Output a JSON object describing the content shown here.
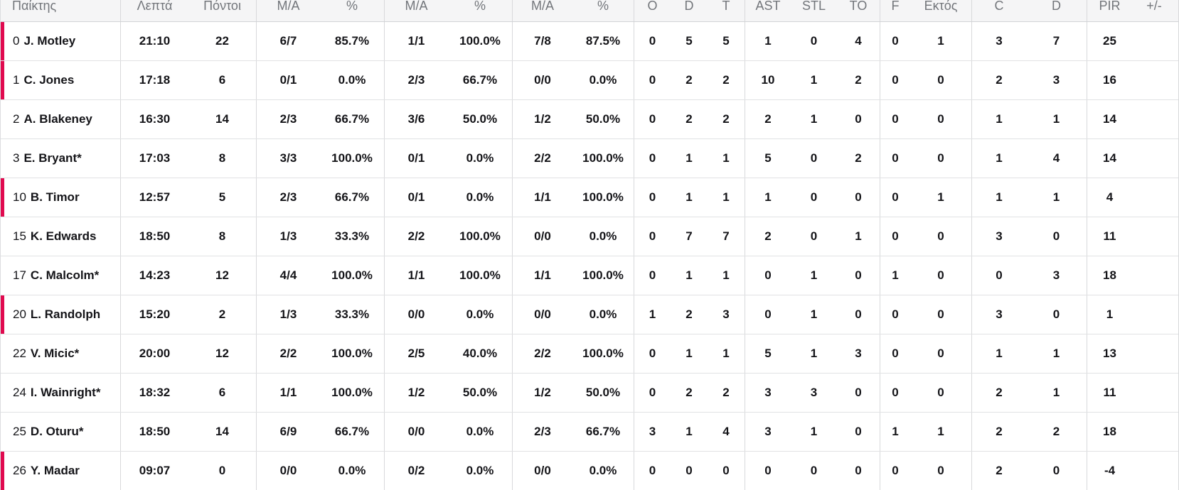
{
  "colors": {
    "on_court_accent": "#e00a4f",
    "header_background": "#f5f5f6",
    "header_text": "#73767b",
    "body_text": "#141418",
    "group_border": "#d8d9db",
    "row_border": "#e1e2e4"
  },
  "table": {
    "columns": [
      {
        "key": "player",
        "label": "Παίκτης"
      },
      {
        "key": "minutes",
        "label": "Λεπτά"
      },
      {
        "key": "points",
        "label": "Πόντοι"
      },
      {
        "key": "fg2_made_attempted",
        "label": "M/A"
      },
      {
        "key": "fg2_percent",
        "label": "%"
      },
      {
        "key": "fg3_made_attempted",
        "label": "M/A"
      },
      {
        "key": "fg3_percent",
        "label": "%"
      },
      {
        "key": "ft_made_attempted",
        "label": "M/A"
      },
      {
        "key": "ft_percent",
        "label": "%"
      },
      {
        "key": "rebounds_offensive",
        "label": "O"
      },
      {
        "key": "rebounds_defensive",
        "label": "D"
      },
      {
        "key": "rebounds_total",
        "label": "T"
      },
      {
        "key": "assists",
        "label": "AST"
      },
      {
        "key": "steals",
        "label": "STL"
      },
      {
        "key": "turnovers",
        "label": "TO"
      },
      {
        "key": "blocks_favour",
        "label": "F"
      },
      {
        "key": "blocks_against",
        "label": "Εκτός"
      },
      {
        "key": "fouls_committed",
        "label": "C"
      },
      {
        "key": "fouls_drawn",
        "label": "D"
      },
      {
        "key": "pir",
        "label": "PIR"
      },
      {
        "key": "plus_minus",
        "label": "+/-"
      }
    ],
    "rows": [
      {
        "on_court": true,
        "number": "0",
        "name": "J. Motley",
        "stats": [
          "21:10",
          "22",
          "6/7",
          "85.7%",
          "1/1",
          "100.0%",
          "7/8",
          "87.5%",
          "0",
          "5",
          "5",
          "1",
          "0",
          "4",
          "0",
          "1",
          "3",
          "7",
          "25",
          ""
        ]
      },
      {
        "on_court": true,
        "number": "1",
        "name": "C. Jones",
        "stats": [
          "17:18",
          "6",
          "0/1",
          "0.0%",
          "2/3",
          "66.7%",
          "0/0",
          "0.0%",
          "0",
          "2",
          "2",
          "10",
          "1",
          "2",
          "0",
          "0",
          "2",
          "3",
          "16",
          ""
        ]
      },
      {
        "on_court": false,
        "number": "2",
        "name": "A. Blakeney",
        "stats": [
          "16:30",
          "14",
          "2/3",
          "66.7%",
          "3/6",
          "50.0%",
          "1/2",
          "50.0%",
          "0",
          "2",
          "2",
          "2",
          "1",
          "0",
          "0",
          "0",
          "1",
          "1",
          "14",
          ""
        ]
      },
      {
        "on_court": false,
        "number": "3",
        "name": "E. Bryant*",
        "stats": [
          "17:03",
          "8",
          "3/3",
          "100.0%",
          "0/1",
          "0.0%",
          "2/2",
          "100.0%",
          "0",
          "1",
          "1",
          "5",
          "0",
          "2",
          "0",
          "0",
          "1",
          "4",
          "14",
          ""
        ]
      },
      {
        "on_court": true,
        "number": "10",
        "name": "B. Timor",
        "stats": [
          "12:57",
          "5",
          "2/3",
          "66.7%",
          "0/1",
          "0.0%",
          "1/1",
          "100.0%",
          "0",
          "1",
          "1",
          "1",
          "0",
          "0",
          "0",
          "1",
          "1",
          "1",
          "4",
          ""
        ]
      },
      {
        "on_court": false,
        "number": "15",
        "name": "K. Edwards",
        "stats": [
          "18:50",
          "8",
          "1/3",
          "33.3%",
          "2/2",
          "100.0%",
          "0/0",
          "0.0%",
          "0",
          "7",
          "7",
          "2",
          "0",
          "1",
          "0",
          "0",
          "3",
          "0",
          "11",
          ""
        ]
      },
      {
        "on_court": false,
        "number": "17",
        "name": "C. Malcolm*",
        "stats": [
          "14:23",
          "12",
          "4/4",
          "100.0%",
          "1/1",
          "100.0%",
          "1/1",
          "100.0%",
          "0",
          "1",
          "1",
          "0",
          "1",
          "0",
          "1",
          "0",
          "0",
          "3",
          "18",
          ""
        ]
      },
      {
        "on_court": true,
        "number": "20",
        "name": "L. Randolph",
        "stats": [
          "15:20",
          "2",
          "1/3",
          "33.3%",
          "0/0",
          "0.0%",
          "0/0",
          "0.0%",
          "1",
          "2",
          "3",
          "0",
          "1",
          "0",
          "0",
          "0",
          "3",
          "0",
          "1",
          ""
        ]
      },
      {
        "on_court": false,
        "number": "22",
        "name": "V. Micic*",
        "stats": [
          "20:00",
          "12",
          "2/2",
          "100.0%",
          "2/5",
          "40.0%",
          "2/2",
          "100.0%",
          "0",
          "1",
          "1",
          "5",
          "1",
          "3",
          "0",
          "0",
          "1",
          "1",
          "13",
          ""
        ]
      },
      {
        "on_court": false,
        "number": "24",
        "name": "I. Wainright*",
        "stats": [
          "18:32",
          "6",
          "1/1",
          "100.0%",
          "1/2",
          "50.0%",
          "1/2",
          "50.0%",
          "0",
          "2",
          "2",
          "3",
          "3",
          "0",
          "0",
          "0",
          "2",
          "1",
          "11",
          ""
        ]
      },
      {
        "on_court": false,
        "number": "25",
        "name": "D. Oturu*",
        "stats": [
          "18:50",
          "14",
          "6/9",
          "66.7%",
          "0/0",
          "0.0%",
          "2/3",
          "66.7%",
          "3",
          "1",
          "4",
          "3",
          "1",
          "0",
          "1",
          "1",
          "2",
          "2",
          "18",
          ""
        ]
      },
      {
        "on_court": true,
        "number": "26",
        "name": "Y. Madar",
        "stats": [
          "09:07",
          "0",
          "0/0",
          "0.0%",
          "0/2",
          "0.0%",
          "0/0",
          "0.0%",
          "0",
          "0",
          "0",
          "0",
          "0",
          "0",
          "0",
          "0",
          "2",
          "0",
          "-4",
          ""
        ]
      }
    ]
  }
}
